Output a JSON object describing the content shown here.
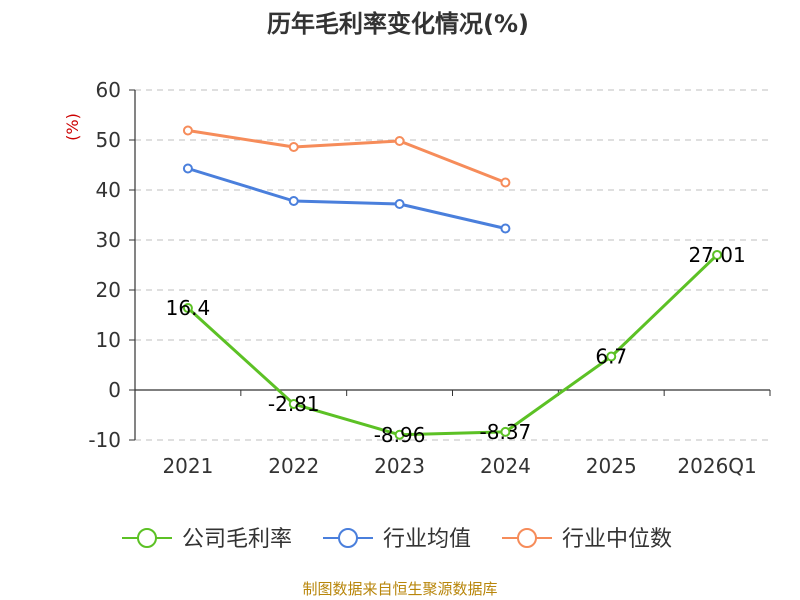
{
  "chart_data": {
    "type": "line",
    "title": "历年毛利率变化情况(%)",
    "ylabel": "(%)",
    "xlabel": "",
    "categories": [
      "2021",
      "2022",
      "2023",
      "2024",
      "2025",
      "2026Q1"
    ],
    "yticks": [
      60,
      50,
      40,
      30,
      20,
      10,
      0,
      -10
    ],
    "ylim": [
      -10,
      60
    ],
    "grid": true,
    "legend_position": "bottom",
    "series": [
      {
        "name": "公司毛利率",
        "color": "#5cc125",
        "values": [
          16.4,
          -2.81,
          -8.96,
          -8.37,
          6.7,
          27.01
        ],
        "labels": [
          "16.4",
          "-2.81",
          "-8.96",
          "-8.37",
          "6.7",
          "27.01"
        ]
      },
      {
        "name": "行业均值",
        "color": "#4a7fdc",
        "values": [
          44.3,
          37.8,
          37.2,
          32.3,
          null,
          null
        ]
      },
      {
        "name": "行业中位数",
        "color": "#f68c5a",
        "values": [
          51.9,
          48.6,
          49.8,
          41.5,
          null,
          null
        ]
      }
    ],
    "source": "制图数据来自恒生聚源数据库"
  }
}
